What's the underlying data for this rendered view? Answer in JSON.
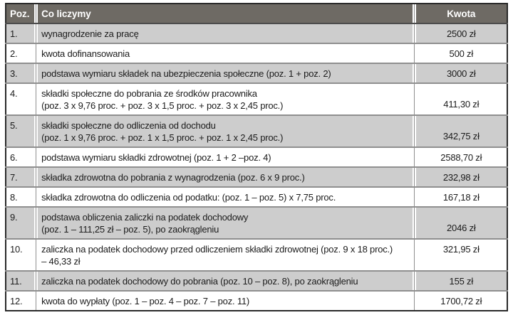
{
  "table": {
    "headers": {
      "poz": "Poz.",
      "co_liczymy": "Co liczymy",
      "kwota": "Kwota"
    },
    "rows": [
      {
        "poz": "1.",
        "lines": [
          "wynagrodzenie za pracę"
        ],
        "kwota": "2500 zł",
        "shaded": true,
        "kwota_valign": "top"
      },
      {
        "poz": "2.",
        "lines": [
          "kwota dofinansowania"
        ],
        "kwota": "500 zł",
        "shaded": false,
        "kwota_valign": "top"
      },
      {
        "poz": "3.",
        "lines": [
          "podstawa wymiaru składek na ubezpieczenia społeczne (poz. 1 + poz. 2)"
        ],
        "kwota": "3000 zł",
        "shaded": true,
        "kwota_valign": "top"
      },
      {
        "poz": "4.",
        "lines": [
          "składki społeczne  do pobrania ze środków pracownika",
          "(poz. 3 x 9,76 proc. + poz. 3 x 1,5 proc. + poz. 3 x 2,45 proc.)"
        ],
        "kwota": "411,30 zł",
        "shaded": false,
        "kwota_valign": "bottom"
      },
      {
        "poz": "5.",
        "lines": [
          "składki społeczne do odliczenia od dochodu",
          "(poz. 1 x 9,76 proc. + poz. 1 x 1,5 proc. + poz. 1 x 2,45 proc.)"
        ],
        "kwota": "342,75 zł",
        "shaded": true,
        "kwota_valign": "bottom"
      },
      {
        "poz": "6.",
        "lines": [
          "podstawa wymiaru składki zdrowotnej (poz. 1 + 2 –poz.  4)"
        ],
        "kwota": "2588,70 zł",
        "shaded": false,
        "kwota_valign": "top"
      },
      {
        "poz": "7.",
        "lines": [
          "składka zdrowotna do pobrania z wynagrodzenia (poz. 6 x 9 proc.)"
        ],
        "kwota": "232,98 zł",
        "shaded": true,
        "kwota_valign": "top"
      },
      {
        "poz": "8.",
        "lines": [
          "składka zdrowotna do odliczenia od podatku: (poz. 1 – poz. 5) x 7,75 proc."
        ],
        "kwota": "167,18 zł",
        "shaded": false,
        "kwota_valign": "top"
      },
      {
        "poz": "9.",
        "lines": [
          "podstawa obliczenia zaliczki na podatek dochodowy",
          "(poz. 1 – 111,25 zł – poz. 5), po zaokrągleniu"
        ],
        "kwota": "2046 zł",
        "shaded": true,
        "kwota_valign": "bottom"
      },
      {
        "poz": "10.",
        "lines": [
          "zaliczka na podatek dochodowy przed odliczeniem składki zdrowotnej (poz. 9 x 18 proc.)",
          "– 46,33 zł"
        ],
        "kwota": "321,95 zł",
        "shaded": false,
        "kwota_valign": "top"
      },
      {
        "poz": "11.",
        "lines": [
          "zaliczka na podatek dochodowy do pobrania (poz. 10 – poz. 8), po zaokrągleniu"
        ],
        "kwota": "155 zł",
        "shaded": true,
        "kwota_valign": "top"
      },
      {
        "poz": "12.",
        "lines": [
          "kwota do wypłaty (poz. 1 – poz. 4 – poz. 7 – poz. 11)"
        ],
        "kwota": "1700,72 zł",
        "shaded": false,
        "kwota_valign": "top"
      }
    ]
  },
  "colors": {
    "header_bg": "#6e6a64",
    "header_text": "#ffffff",
    "row_shade": "#cdcdcd",
    "row_plain": "#ffffff",
    "grid_line": "#8f8f8f",
    "header_divider": "#4c4c4c",
    "outer_border": "#2a2a2a",
    "text": "#1b1b1b"
  }
}
